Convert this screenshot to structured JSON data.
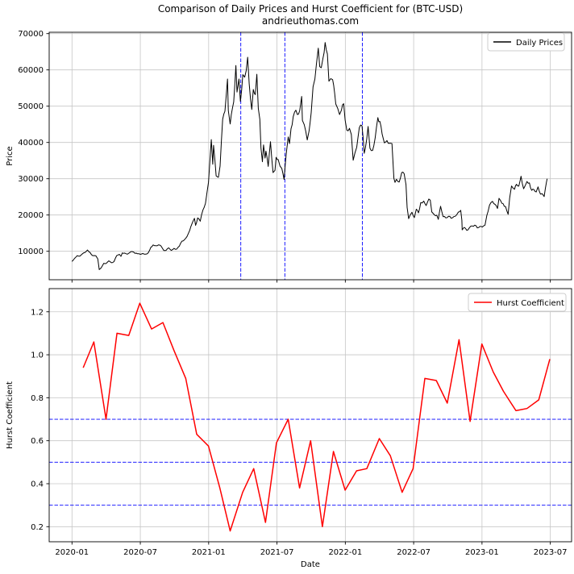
{
  "title": "Comparison of Daily Prices and Hurst Coefficient for (BTC-USD)",
  "subtitle": "andrieuthomas.com",
  "colors": {
    "price_line": "#000000",
    "hurst_line": "#ff0000",
    "event_marker": "#0000ff",
    "threshold_line": "#0000ff",
    "grid": "#c6c6c6",
    "spine": "#000000",
    "legend_border": "#cccccc",
    "background": "#ffffff"
  },
  "x_axis": {
    "label": "Date",
    "tick_labels": [
      "2020-01",
      "2020-07",
      "2021-01",
      "2021-07",
      "2022-01",
      "2022-07",
      "2023-01",
      "2023-07"
    ]
  },
  "chart_data": [
    {
      "type": "line",
      "panel": "top",
      "name": "daily-prices",
      "legend": "Daily Prices",
      "legend_position": "upper right",
      "ylabel": "Price",
      "y_tick_labels": [
        "10000",
        "20000",
        "30000",
        "40000",
        "50000",
        "60000",
        "70000"
      ],
      "ylim": [
        2150,
        70400
      ],
      "grid": true,
      "line_color": "#000000",
      "event_marker_dates": [
        "2021-03-26",
        "2021-07-22",
        "2022-02-16"
      ],
      "series": [
        [
          "2020-01-01",
          7200
        ],
        [
          "2020-01-08",
          8050
        ],
        [
          "2020-01-15",
          8800
        ],
        [
          "2020-01-22",
          8650
        ],
        [
          "2020-01-29",
          9300
        ],
        [
          "2020-02-05",
          9650
        ],
        [
          "2020-02-12",
          10350
        ],
        [
          "2020-02-19",
          9650
        ],
        [
          "2020-02-26",
          8800
        ],
        [
          "2020-03-04",
          8750
        ],
        [
          "2020-03-09",
          7900
        ],
        [
          "2020-03-13",
          4950
        ],
        [
          "2020-03-18",
          5400
        ],
        [
          "2020-03-25",
          6700
        ],
        [
          "2020-04-01",
          6650
        ],
        [
          "2020-04-08",
          7350
        ],
        [
          "2020-04-15",
          6850
        ],
        [
          "2020-04-22",
          7150
        ],
        [
          "2020-04-29",
          8800
        ],
        [
          "2020-05-06",
          9150
        ],
        [
          "2020-05-10",
          8600
        ],
        [
          "2020-05-14",
          9550
        ],
        [
          "2020-05-20",
          9500
        ],
        [
          "2020-05-27",
          9200
        ],
        [
          "2020-06-03",
          9650
        ],
        [
          "2020-06-10",
          9900
        ],
        [
          "2020-06-17",
          9450
        ],
        [
          "2020-06-24",
          9300
        ],
        [
          "2020-07-01",
          9150
        ],
        [
          "2020-07-08",
          9400
        ],
        [
          "2020-07-15",
          9200
        ],
        [
          "2020-07-22",
          9550
        ],
        [
          "2020-07-29",
          11100
        ],
        [
          "2020-08-05",
          11750
        ],
        [
          "2020-08-12",
          11550
        ],
        [
          "2020-08-19",
          11750
        ],
        [
          "2020-08-26",
          11450
        ],
        [
          "2020-09-03",
          10200
        ],
        [
          "2020-09-09",
          10250
        ],
        [
          "2020-09-16",
          10950
        ],
        [
          "2020-09-23",
          10250
        ],
        [
          "2020-09-30",
          10800
        ],
        [
          "2020-10-07",
          10600
        ],
        [
          "2020-10-14",
          11450
        ],
        [
          "2020-10-21",
          12800
        ],
        [
          "2020-10-28",
          13250
        ],
        [
          "2020-11-04",
          14100
        ],
        [
          "2020-11-11",
          15700
        ],
        [
          "2020-11-18",
          17800
        ],
        [
          "2020-11-24",
          19100
        ],
        [
          "2020-11-27",
          17150
        ],
        [
          "2020-12-02",
          19200
        ],
        [
          "2020-12-09",
          18300
        ],
        [
          "2020-12-16",
          21350
        ],
        [
          "2020-12-23",
          23250
        ],
        [
          "2020-12-27",
          26250
        ],
        [
          "2020-12-31",
          29000
        ],
        [
          "2021-01-03",
          33000
        ],
        [
          "2021-01-08",
          40800
        ],
        [
          "2021-01-12",
          34000
        ],
        [
          "2021-01-14",
          39200
        ],
        [
          "2021-01-21",
          30800
        ],
        [
          "2021-01-27",
          30400
        ],
        [
          "2021-02-01",
          33500
        ],
        [
          "2021-02-08",
          46400
        ],
        [
          "2021-02-14",
          48600
        ],
        [
          "2021-02-21",
          57500
        ],
        [
          "2021-02-23",
          48800
        ],
        [
          "2021-02-28",
          45100
        ],
        [
          "2021-03-07",
          51200
        ],
        [
          "2021-03-13",
          61200
        ],
        [
          "2021-03-16",
          53900
        ],
        [
          "2021-03-21",
          57500
        ],
        [
          "2021-03-25",
          51300
        ],
        [
          "2021-04-01",
          58700
        ],
        [
          "2021-04-06",
          58000
        ],
        [
          "2021-04-10",
          59800
        ],
        [
          "2021-04-14",
          63500
        ],
        [
          "2021-04-18",
          56200
        ],
        [
          "2021-04-25",
          49100
        ],
        [
          "2021-04-29",
          54600
        ],
        [
          "2021-05-04",
          53200
        ],
        [
          "2021-05-08",
          58800
        ],
        [
          "2021-05-12",
          49400
        ],
        [
          "2021-05-16",
          46400
        ],
        [
          "2021-05-19",
          38500
        ],
        [
          "2021-05-23",
          34700
        ],
        [
          "2021-05-26",
          39300
        ],
        [
          "2021-05-30",
          35700
        ],
        [
          "2021-06-02",
          37600
        ],
        [
          "2021-06-08",
          33400
        ],
        [
          "2021-06-14",
          40200
        ],
        [
          "2021-06-21",
          31700
        ],
        [
          "2021-06-26",
          32300
        ],
        [
          "2021-06-29",
          35900
        ],
        [
          "2021-07-04",
          35300
        ],
        [
          "2021-07-09",
          33500
        ],
        [
          "2021-07-14",
          32800
        ],
        [
          "2021-07-20",
          29800
        ],
        [
          "2021-07-26",
          37200
        ],
        [
          "2021-07-31",
          41500
        ],
        [
          "2021-08-04",
          39700
        ],
        [
          "2021-08-08",
          43800
        ],
        [
          "2021-08-14",
          47100
        ],
        [
          "2021-08-21",
          48900
        ],
        [
          "2021-08-25",
          47700
        ],
        [
          "2021-09-01",
          48800
        ],
        [
          "2021-09-06",
          52700
        ],
        [
          "2021-09-08",
          46100
        ],
        [
          "2021-09-13",
          44900
        ],
        [
          "2021-09-21",
          40700
        ],
        [
          "2021-09-26",
          43200
        ],
        [
          "2021-10-01",
          48200
        ],
        [
          "2021-10-06",
          55300
        ],
        [
          "2021-10-11",
          57500
        ],
        [
          "2021-10-15",
          61600
        ],
        [
          "2021-10-20",
          66000
        ],
        [
          "2021-10-24",
          60900
        ],
        [
          "2021-10-28",
          60600
        ],
        [
          "2021-11-02",
          63200
        ],
        [
          "2021-11-08",
          67550
        ],
        [
          "2021-11-14",
          64400
        ],
        [
          "2021-11-18",
          56900
        ],
        [
          "2021-11-23",
          57600
        ],
        [
          "2021-11-28",
          57300
        ],
        [
          "2021-12-03",
          53600
        ],
        [
          "2021-12-06",
          50600
        ],
        [
          "2021-12-11",
          49400
        ],
        [
          "2021-12-16",
          47700
        ],
        [
          "2021-12-21",
          48900
        ],
        [
          "2021-12-27",
          50700
        ],
        [
          "2021-12-31",
          46200
        ],
        [
          "2022-01-05",
          43400
        ],
        [
          "2022-01-12",
          43900
        ],
        [
          "2022-01-17",
          42200
        ],
        [
          "2022-01-22",
          35100
        ],
        [
          "2022-01-27",
          37200
        ],
        [
          "2022-02-01",
          38700
        ],
        [
          "2022-02-08",
          44100
        ],
        [
          "2022-02-15",
          44600
        ],
        [
          "2022-02-21",
          37000
        ],
        [
          "2022-02-24",
          38300
        ],
        [
          "2022-03-01",
          44400
        ],
        [
          "2022-03-06",
          38400
        ],
        [
          "2022-03-13",
          37800
        ],
        [
          "2022-03-20",
          41300
        ],
        [
          "2022-03-27",
          46850
        ],
        [
          "2022-04-02",
          45800
        ],
        [
          "2022-04-08",
          42300
        ],
        [
          "2022-04-14",
          39900
        ],
        [
          "2022-04-21",
          40500
        ],
        [
          "2022-04-28",
          39800
        ],
        [
          "2022-05-04",
          39700
        ],
        [
          "2022-05-09",
          30100
        ],
        [
          "2022-05-12",
          29000
        ],
        [
          "2022-05-16",
          29850
        ],
        [
          "2022-05-23",
          29100
        ],
        [
          "2022-05-30",
          31700
        ],
        [
          "2022-06-06",
          31400
        ],
        [
          "2022-06-11",
          28400
        ],
        [
          "2022-06-14",
          22100
        ],
        [
          "2022-06-18",
          19000
        ],
        [
          "2022-06-22",
          19950
        ],
        [
          "2022-06-27",
          20750
        ],
        [
          "2022-07-03",
          19300
        ],
        [
          "2022-07-08",
          21600
        ],
        [
          "2022-07-14",
          20600
        ],
        [
          "2022-07-20",
          23400
        ],
        [
          "2022-07-28",
          23850
        ],
        [
          "2022-08-04",
          22600
        ],
        [
          "2022-08-11",
          24400
        ],
        [
          "2022-08-15",
          24100
        ],
        [
          "2022-08-19",
          20850
        ],
        [
          "2022-08-26",
          20050
        ],
        [
          "2022-09-02",
          19950
        ],
        [
          "2022-09-06",
          18800
        ],
        [
          "2022-09-12",
          22400
        ],
        [
          "2022-09-19",
          19550
        ],
        [
          "2022-09-26",
          19200
        ],
        [
          "2022-10-03",
          19650
        ],
        [
          "2022-10-10",
          19100
        ],
        [
          "2022-10-17",
          19550
        ],
        [
          "2022-10-25",
          20100
        ],
        [
          "2022-10-29",
          20800
        ],
        [
          "2022-11-05",
          21300
        ],
        [
          "2022-11-08",
          18550
        ],
        [
          "2022-11-09",
          15900
        ],
        [
          "2022-11-14",
          16600
        ],
        [
          "2022-11-21",
          15800
        ],
        [
          "2022-11-28",
          16450
        ],
        [
          "2022-12-05",
          17000
        ],
        [
          "2022-12-12",
          17200
        ],
        [
          "2022-12-19",
          16450
        ],
        [
          "2022-12-26",
          16850
        ],
        [
          "2023-01-02",
          16700
        ],
        [
          "2023-01-09",
          17200
        ],
        [
          "2023-01-14",
          19900
        ],
        [
          "2023-01-21",
          22700
        ],
        [
          "2023-01-29",
          23750
        ],
        [
          "2023-02-05",
          22950
        ],
        [
          "2023-02-12",
          21800
        ],
        [
          "2023-02-16",
          24600
        ],
        [
          "2023-02-24",
          23200
        ],
        [
          "2023-03-03",
          22350
        ],
        [
          "2023-03-10",
          20200
        ],
        [
          "2023-03-14",
          24700
        ],
        [
          "2023-03-19",
          28000
        ],
        [
          "2023-03-27",
          27100
        ],
        [
          "2023-04-02",
          28450
        ],
        [
          "2023-04-08",
          27950
        ],
        [
          "2023-04-14",
          30700
        ],
        [
          "2023-04-21",
          27250
        ],
        [
          "2023-04-26",
          28300
        ],
        [
          "2023-04-30",
          29250
        ],
        [
          "2023-05-06",
          28850
        ],
        [
          "2023-05-12",
          26800
        ],
        [
          "2023-05-18",
          27000
        ],
        [
          "2023-05-24",
          26350
        ],
        [
          "2023-05-29",
          27750
        ],
        [
          "2023-06-05",
          25750
        ],
        [
          "2023-06-10",
          25850
        ],
        [
          "2023-06-15",
          25100
        ],
        [
          "2023-06-21",
          29000
        ],
        [
          "2023-06-23",
          30000
        ]
      ]
    },
    {
      "type": "line",
      "panel": "bottom",
      "name": "hurst-coefficient",
      "legend": "Hurst Coefficient",
      "legend_position": "upper right",
      "ylabel": "Hurst Coefficient",
      "xlabel": "Date",
      "y_tick_labels": [
        "0.2",
        "0.4",
        "0.6",
        "0.8",
        "1.0",
        "1.2"
      ],
      "ylim": [
        0.125,
        1.3
      ],
      "grid": true,
      "line_color": "#ff0000",
      "threshold_values": [
        0.7,
        0.5,
        0.3
      ],
      "series": [
        [
          "2020-01-31",
          0.94
        ],
        [
          "2020-02-29",
          1.06
        ],
        [
          "2020-03-31",
          0.7
        ],
        [
          "2020-04-30",
          1.1
        ],
        [
          "2020-05-31",
          1.09
        ],
        [
          "2020-06-30",
          1.24
        ],
        [
          "2020-07-31",
          1.12
        ],
        [
          "2020-08-31",
          1.15
        ],
        [
          "2020-09-30",
          1.02
        ],
        [
          "2020-10-31",
          0.89
        ],
        [
          "2020-11-30",
          0.63
        ],
        [
          "2020-12-31",
          0.575
        ],
        [
          "2021-01-31",
          0.38
        ],
        [
          "2021-02-28",
          0.18
        ],
        [
          "2021-03-31",
          0.36
        ],
        [
          "2021-04-30",
          0.47
        ],
        [
          "2021-05-31",
          0.22
        ],
        [
          "2021-06-30",
          0.59
        ],
        [
          "2021-07-31",
          0.7
        ],
        [
          "2021-08-31",
          0.38
        ],
        [
          "2021-09-30",
          0.6
        ],
        [
          "2021-10-31",
          0.2
        ],
        [
          "2021-11-30",
          0.55
        ],
        [
          "2021-12-31",
          0.37
        ],
        [
          "2022-01-31",
          0.46
        ],
        [
          "2022-02-28",
          0.47
        ],
        [
          "2022-03-31",
          0.61
        ],
        [
          "2022-04-30",
          0.53
        ],
        [
          "2022-05-31",
          0.36
        ],
        [
          "2022-06-30",
          0.47
        ],
        [
          "2022-07-31",
          0.89
        ],
        [
          "2022-08-31",
          0.88
        ],
        [
          "2022-09-30",
          0.775
        ],
        [
          "2022-10-31",
          1.07
        ],
        [
          "2022-11-30",
          0.69
        ],
        [
          "2022-12-31",
          1.05
        ],
        [
          "2023-01-31",
          0.92
        ],
        [
          "2023-02-28",
          0.83
        ],
        [
          "2023-03-31",
          0.74
        ],
        [
          "2023-04-30",
          0.75
        ],
        [
          "2023-05-31",
          0.79
        ],
        [
          "2023-06-30",
          0.98
        ]
      ]
    }
  ]
}
